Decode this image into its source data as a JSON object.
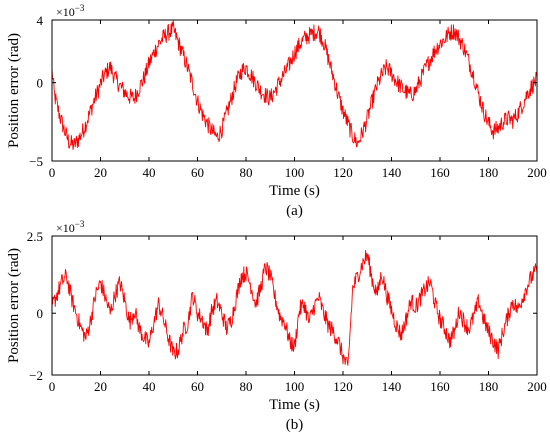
{
  "chart_data": [
    {
      "type": "line",
      "panel_label": "(a)",
      "title": "",
      "xlabel": "Time (s)",
      "ylabel": "Position error (rad)",
      "y_multiplier": "×10",
      "y_exponent": "−3",
      "xlim": [
        0,
        200
      ],
      "ylim": [
        -5,
        4
      ],
      "xticks": [
        0,
        20,
        40,
        60,
        80,
        100,
        120,
        140,
        160,
        180,
        200
      ],
      "yticks": [
        -5,
        0,
        4
      ],
      "grid": false,
      "legend": "none",
      "series_color": "#ff0000",
      "series": [
        {
          "x": [
            0,
            1,
            3,
            5,
            7,
            9,
            11,
            13,
            15,
            17,
            19,
            21,
            23,
            24,
            26,
            28,
            30,
            32,
            34,
            36,
            38,
            40,
            42,
            44,
            46,
            48,
            50,
            51,
            52,
            54,
            56,
            58,
            60,
            62,
            64,
            66,
            68,
            70,
            72,
            74,
            76,
            78,
            80,
            82,
            84,
            86,
            88,
            90,
            92,
            94,
            96,
            98,
            100,
            102,
            104,
            106,
            108,
            110,
            112,
            114,
            116,
            118,
            120,
            122,
            124,
            126,
            128,
            130,
            132,
            134,
            136,
            138,
            140,
            142,
            144,
            146,
            148,
            150,
            152,
            154,
            156,
            158,
            160,
            162,
            164,
            166,
            168,
            170,
            172,
            174,
            176,
            178,
            180,
            182,
            184,
            186,
            188,
            190,
            192,
            194,
            196,
            198,
            200
          ],
          "y": [
            0.8,
            -0.8,
            -2.0,
            -3.0,
            -3.8,
            -4.0,
            -3.6,
            -3.0,
            -2.2,
            -1.3,
            -0.5,
            0.3,
            0.8,
            1.0,
            0.3,
            -0.2,
            -0.6,
            -0.9,
            -1.0,
            -0.3,
            0.3,
            1.2,
            1.9,
            2.5,
            2.9,
            3.2,
            3.4,
            3.0,
            2.6,
            1.8,
            0.9,
            -0.1,
            -1.2,
            -2.0,
            -2.6,
            -3.1,
            -3.5,
            -3.0,
            -2.0,
            -1.0,
            0.0,
            0.7,
            1.0,
            0.5,
            0.0,
            -0.5,
            -0.8,
            -1.0,
            -0.5,
            0.1,
            0.6,
            1.2,
            1.9,
            2.4,
            2.8,
            3.0,
            3.2,
            3.3,
            2.6,
            1.5,
            0.4,
            -0.8,
            -1.8,
            -2.6,
            -3.4,
            -3.9,
            -3.2,
            -2.3,
            -1.2,
            -0.2,
            0.5,
            1.0,
            0.6,
            0.1,
            -0.3,
            -0.6,
            -0.8,
            -0.5,
            0.2,
            0.9,
            1.5,
            2.1,
            2.5,
            2.8,
            3.2,
            3.3,
            2.8,
            2.2,
            1.3,
            0.4,
            -0.8,
            -1.8,
            -2.6,
            -3.1,
            -2.9,
            -2.5,
            -2.3,
            -2.4,
            -2.0,
            -1.4,
            -0.7,
            -0.2,
            0.2
          ]
        }
      ]
    },
    {
      "type": "line",
      "panel_label": "(b)",
      "title": "",
      "xlabel": "Time (s)",
      "ylabel": "Position error (rad)",
      "y_multiplier": "×10",
      "y_exponent": "−3",
      "xlim": [
        0,
        200
      ],
      "ylim": [
        -2,
        2.5
      ],
      "xticks": [
        0,
        20,
        40,
        60,
        80,
        100,
        120,
        140,
        160,
        180,
        200
      ],
      "yticks": [
        -2,
        0,
        2.5
      ],
      "grid": false,
      "legend": "none",
      "series_color": "#ff0000",
      "series": [
        {
          "x": [
            0,
            2,
            4,
            6,
            8,
            10,
            12,
            14,
            16,
            18,
            20,
            22,
            24,
            26,
            28,
            30,
            32,
            34,
            36,
            38,
            40,
            42,
            44,
            46,
            48,
            50,
            52,
            54,
            56,
            58,
            60,
            62,
            64,
            66,
            68,
            70,
            72,
            74,
            76,
            78,
            80,
            82,
            84,
            86,
            88,
            90,
            92,
            94,
            96,
            98,
            100,
            102,
            104,
            106,
            108,
            110,
            112,
            114,
            116,
            118,
            120,
            122,
            124,
            126,
            128,
            130,
            132,
            134,
            136,
            138,
            140,
            142,
            144,
            146,
            148,
            150,
            152,
            154,
            156,
            158,
            160,
            162,
            164,
            166,
            168,
            170,
            172,
            174,
            176,
            178,
            180,
            182,
            184,
            186,
            188,
            190,
            192,
            194,
            196,
            198,
            200
          ],
          "y": [
            0.2,
            0.6,
            1.0,
            1.2,
            0.5,
            0.0,
            -0.5,
            -0.8,
            -0.2,
            0.6,
            1.0,
            0.5,
            0.0,
            0.6,
            1.0,
            0.4,
            -0.3,
            0.1,
            -0.5,
            -0.8,
            -1.0,
            -0.3,
            0.3,
            -0.2,
            -0.8,
            -1.3,
            -1.2,
            -0.6,
            -0.3,
            0.6,
            0.0,
            -0.2,
            -0.6,
            0.1,
            0.4,
            0.0,
            -0.5,
            -0.2,
            0.5,
            1.2,
            1.3,
            0.9,
            0.3,
            0.8,
            1.5,
            1.2,
            0.5,
            -0.1,
            -0.3,
            -0.9,
            -1.1,
            0.1,
            0.3,
            -0.3,
            0.2,
            0.5,
            0.0,
            -0.4,
            -0.6,
            -0.9,
            -1.4,
            -1.8,
            0.8,
            1.2,
            1.6,
            1.9,
            1.1,
            0.6,
            1.3,
            0.6,
            0.1,
            -0.4,
            -0.7,
            -0.2,
            0.4,
            0.2,
            0.5,
            0.8,
            1.0,
            0.3,
            -0.2,
            -0.5,
            -0.9,
            -0.6,
            0.1,
            -0.3,
            -0.5,
            -0.1,
            0.4,
            -0.2,
            -0.6,
            -0.9,
            -1.2,
            -0.6,
            -0.1,
            0.4,
            0.1,
            0.5,
            0.9,
            1.2,
            1.4
          ]
        }
      ]
    }
  ]
}
